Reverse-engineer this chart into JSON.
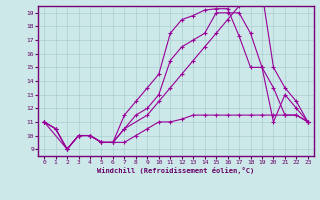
{
  "xlabel": "Windchill (Refroidissement éolien,°C)",
  "ylabel_ticks": [
    9,
    10,
    11,
    12,
    13,
    14,
    15,
    16,
    17,
    18,
    19
  ],
  "xticks": [
    0,
    1,
    2,
    3,
    4,
    5,
    6,
    7,
    8,
    9,
    10,
    11,
    12,
    13,
    14,
    15,
    16,
    17,
    18,
    19,
    20,
    21,
    22,
    23
  ],
  "xlim": [
    -0.5,
    23.5
  ],
  "ylim": [
    8.5,
    19.5
  ],
  "bg_color": "#cce8e8",
  "line_color": "#990099",
  "grid_color": "#aacfcf",
  "lines": [
    {
      "x": [
        0,
        1,
        2,
        3,
        4,
        5,
        6,
        7,
        8,
        9,
        10,
        11,
        12,
        13,
        14,
        15,
        16,
        17,
        18,
        19,
        20,
        21,
        22,
        23
      ],
      "y": [
        11,
        10.5,
        9,
        10,
        10,
        9.5,
        9.5,
        11.5,
        12.5,
        13.5,
        14.5,
        17.5,
        18.5,
        18.8,
        19.2,
        19.3,
        19.3,
        17.3,
        15.0,
        15.0,
        11,
        13.0,
        12.0,
        11
      ]
    },
    {
      "x": [
        0,
        1,
        2,
        3,
        4,
        5,
        6,
        7,
        8,
        9,
        10,
        11,
        12,
        13,
        14,
        15,
        16,
        17,
        18,
        19,
        20,
        21,
        22,
        23
      ],
      "y": [
        11,
        10.5,
        9,
        10,
        10,
        9.5,
        9.5,
        10.5,
        11.5,
        12,
        13,
        15.5,
        16.5,
        17.0,
        17.5,
        19.0,
        19.0,
        19.0,
        17.5,
        15.0,
        13.5,
        11.5,
        11.5,
        11
      ]
    },
    {
      "x": [
        0,
        2,
        3,
        4,
        5,
        6,
        7,
        9,
        10,
        11,
        12,
        13,
        14,
        15,
        16,
        17,
        18,
        19,
        20,
        21,
        22,
        23
      ],
      "y": [
        11,
        9,
        10,
        10,
        9.5,
        9.5,
        10.5,
        11.5,
        12.5,
        13.5,
        14.5,
        15.5,
        16.5,
        17.5,
        18.5,
        19.5,
        20,
        20.5,
        15.0,
        13.5,
        12.5,
        11
      ]
    },
    {
      "x": [
        0,
        1,
        2,
        3,
        4,
        5,
        6,
        7,
        8,
        9,
        10,
        11,
        12,
        13,
        14,
        15,
        16,
        17,
        18,
        19,
        20,
        21,
        22,
        23
      ],
      "y": [
        11,
        10.5,
        9,
        10,
        10,
        9.5,
        9.5,
        9.5,
        10,
        10.5,
        11,
        11,
        11.2,
        11.5,
        11.5,
        11.5,
        11.5,
        11.5,
        11.5,
        11.5,
        11.5,
        11.5,
        11.5,
        11
      ]
    }
  ]
}
